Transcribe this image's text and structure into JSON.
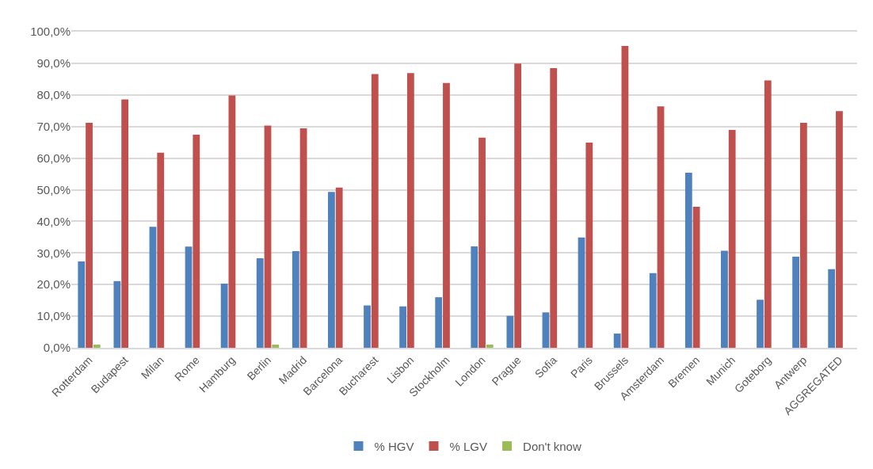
{
  "chart_data": {
    "type": "bar",
    "categories": [
      "Rotterdam",
      "Budapest",
      "Milan",
      "Rome",
      "Hamburg",
      "Berlin",
      "Madrid",
      "Barcelona",
      "Bucharest",
      "Lisbon",
      "Stockholm",
      "London",
      "Prague",
      "Sofia",
      "Paris",
      "Brussels",
      "Amsterdam",
      "Bremen",
      "Munich",
      "Goteborg",
      "Antwerp",
      "AGGREGATED"
    ],
    "series": [
      {
        "name": "% HGV",
        "color": "#4f81bd",
        "values": [
          27.3,
          21.1,
          38.3,
          32.0,
          20.3,
          28.3,
          30.6,
          49.3,
          13.4,
          13.1,
          16.0,
          32.1,
          10.1,
          11.2,
          34.9,
          4.5,
          23.6,
          55.4,
          30.7,
          15.2,
          28.8,
          24.9
        ]
      },
      {
        "name": "% LGV",
        "color": "#c0504d",
        "values": [
          71.2,
          78.6,
          61.7,
          67.4,
          79.8,
          70.3,
          69.4,
          50.7,
          86.6,
          86.9,
          83.8,
          66.5,
          89.9,
          88.5,
          64.9,
          95.5,
          76.4,
          44.6,
          68.9,
          84.6,
          71.2,
          74.9
        ]
      },
      {
        "name": "Don't know",
        "color": "#9bbb59",
        "values": [
          1.0,
          null,
          null,
          null,
          null,
          1.0,
          null,
          null,
          null,
          null,
          null,
          1.0,
          null,
          null,
          null,
          null,
          null,
          null,
          null,
          null,
          null,
          null
        ]
      }
    ],
    "ylim": [
      0,
      100
    ],
    "yticks": [
      {
        "value": 0,
        "label": "0,0%"
      },
      {
        "value": 10,
        "label": "10,0%"
      },
      {
        "value": 20,
        "label": "20,0%"
      },
      {
        "value": 30,
        "label": "30,0%"
      },
      {
        "value": 40,
        "label": "40,0%"
      },
      {
        "value": 50,
        "label": "50,0%"
      },
      {
        "value": 60,
        "label": "60,0%"
      },
      {
        "value": 70,
        "label": "70,0%"
      },
      {
        "value": 80,
        "label": "80,0%"
      },
      {
        "value": 90,
        "label": "90,0%"
      },
      {
        "value": 100,
        "label": "100,0%"
      }
    ],
    "grid": "y",
    "legend": "bottom"
  }
}
